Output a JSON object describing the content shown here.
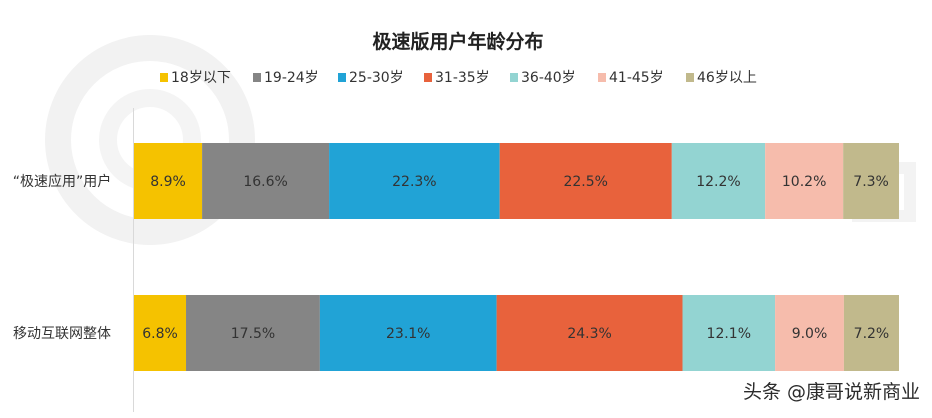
{
  "chart_data": {
    "type": "bar",
    "orientation": "horizontal",
    "stacked": true,
    "normalized_percent": true,
    "title": "极速版用户年龄分布",
    "categories": [
      "“极速应用”用户",
      "移动互联网整体"
    ],
    "series": [
      {
        "name": "18岁以下",
        "color": "#f5c200",
        "values": [
          8.9,
          6.8
        ]
      },
      {
        "name": "19-24岁",
        "color": "#858585",
        "values": [
          16.6,
          17.5
        ]
      },
      {
        "name": "25-30岁",
        "color": "#21a3d6",
        "values": [
          22.3,
          23.1
        ]
      },
      {
        "name": "31-35岁",
        "color": "#e8623c",
        "values": [
          22.5,
          24.3
        ]
      },
      {
        "name": "36-40岁",
        "color": "#93d4d2",
        "values": [
          12.2,
          12.1
        ]
      },
      {
        "name": "41-45岁",
        "color": "#f6bcac",
        "values": [
          10.2,
          9.0
        ]
      },
      {
        "name": "46岁以上",
        "color": "#c1b98c",
        "values": [
          7.3,
          7.2
        ]
      }
    ],
    "value_format": "percent_one_decimal",
    "legend_position": "top",
    "grid": false
  },
  "watermark": "头条 @康哥说新商业"
}
